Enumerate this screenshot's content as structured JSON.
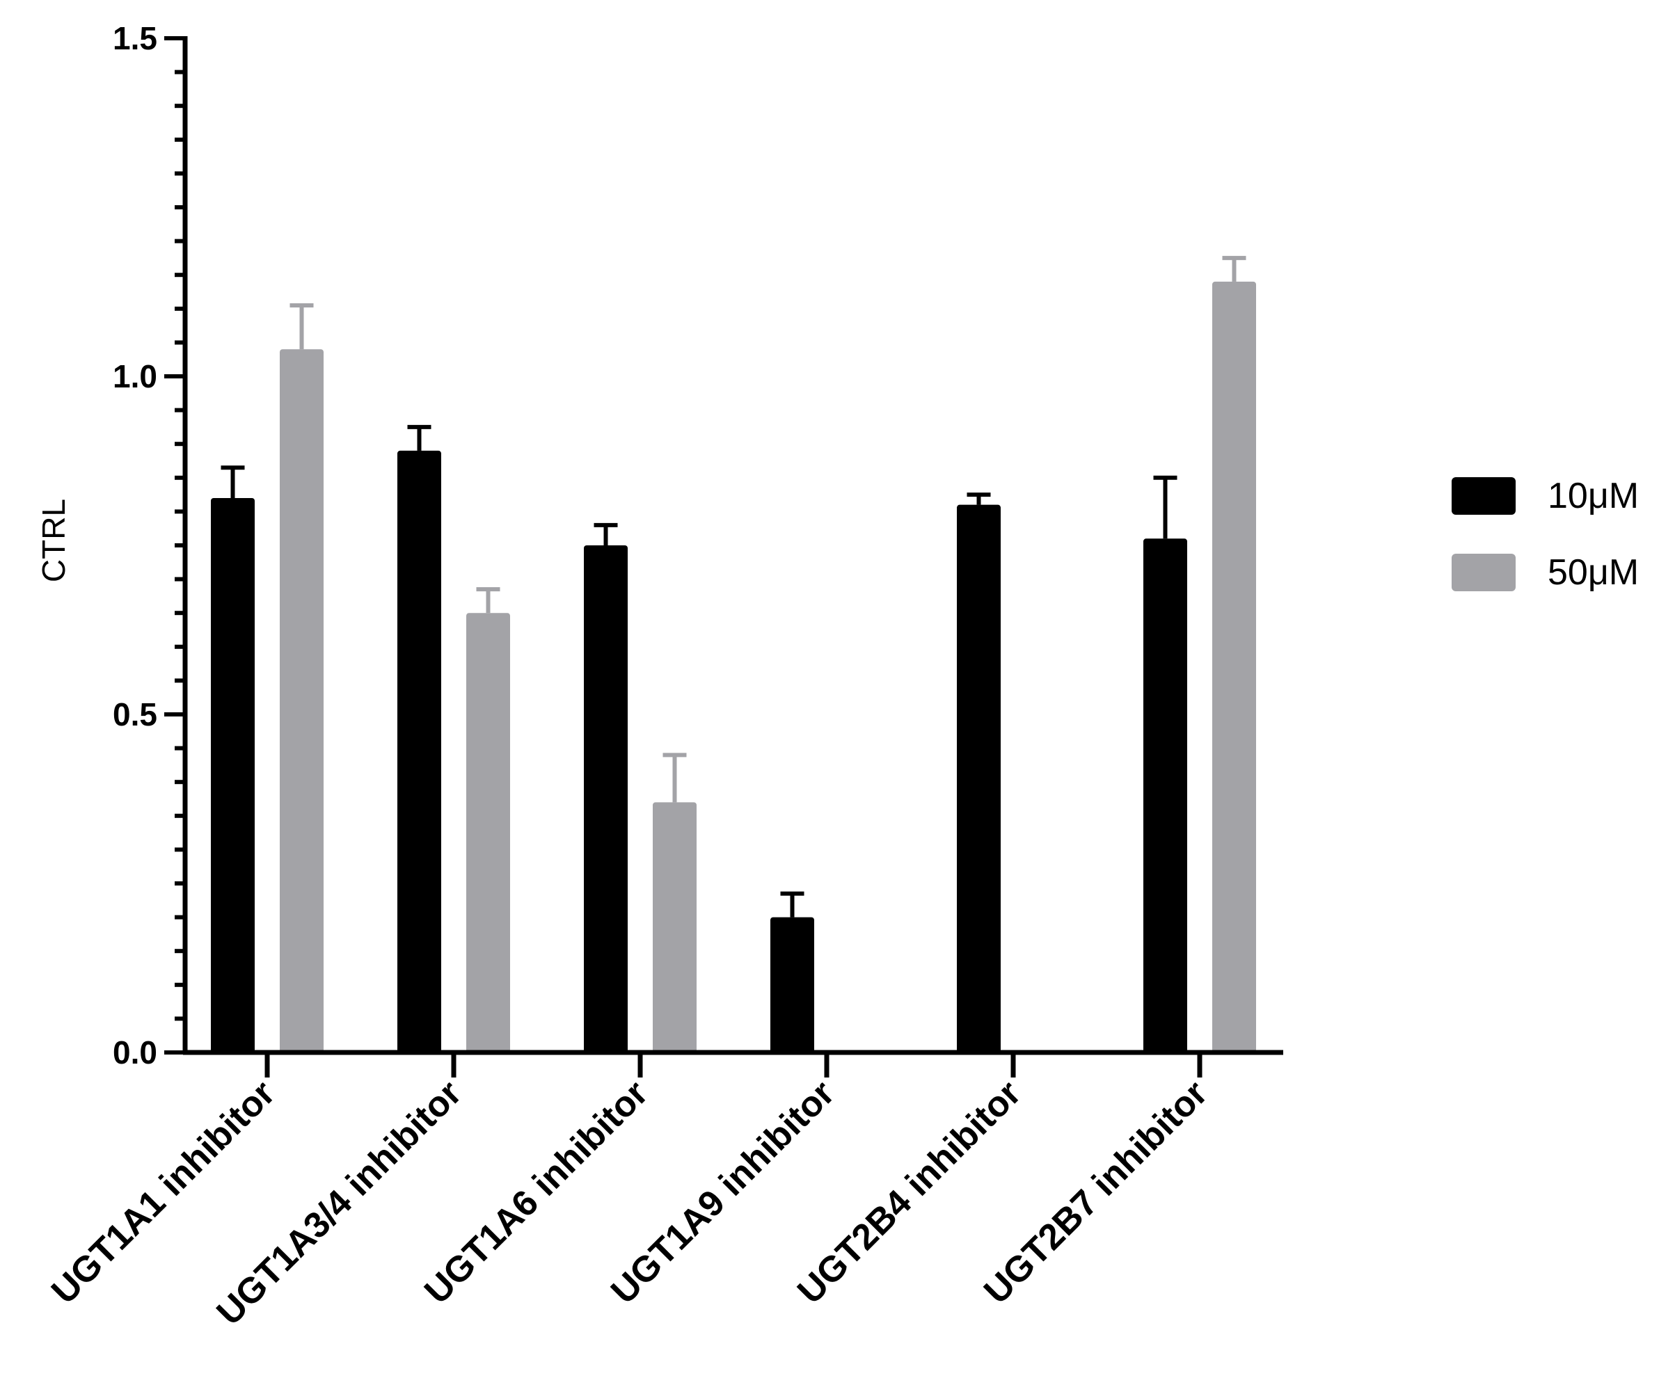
{
  "chart_data": {
    "type": "bar",
    "ylabel": "CTRL",
    "xlabel": "",
    "ylim": [
      0,
      1.5
    ],
    "y_major_ticks": [
      0.0,
      0.5,
      1.0,
      1.5
    ],
    "y_major_tick_labels": [
      "0.0",
      "0.5",
      "1.0",
      "1.5"
    ],
    "y_minor_tick_step": 0.05,
    "categories": [
      "UGT1A1 inhibitor",
      "UGT1A3/4 inhibitor",
      "UGT1A6 inhibitor",
      "UGT1A9 inhibitor",
      "UGT2B4 inhibitor",
      "UGT2B7 inhibitor"
    ],
    "series": [
      {
        "name": "10μM",
        "color": "#000000",
        "values": [
          0.82,
          0.89,
          0.75,
          0.2,
          0.81,
          0.76
        ],
        "errors": [
          0.045,
          0.035,
          0.03,
          0.035,
          0.015,
          0.09
        ]
      },
      {
        "name": "50μM",
        "color": "#a3a3a7",
        "values": [
          1.04,
          0.65,
          0.37,
          0,
          0,
          1.14
        ],
        "errors": [
          0.065,
          0.035,
          0.07,
          0,
          0,
          0.035
        ]
      }
    ],
    "legend_position": "right",
    "grid": false
  }
}
